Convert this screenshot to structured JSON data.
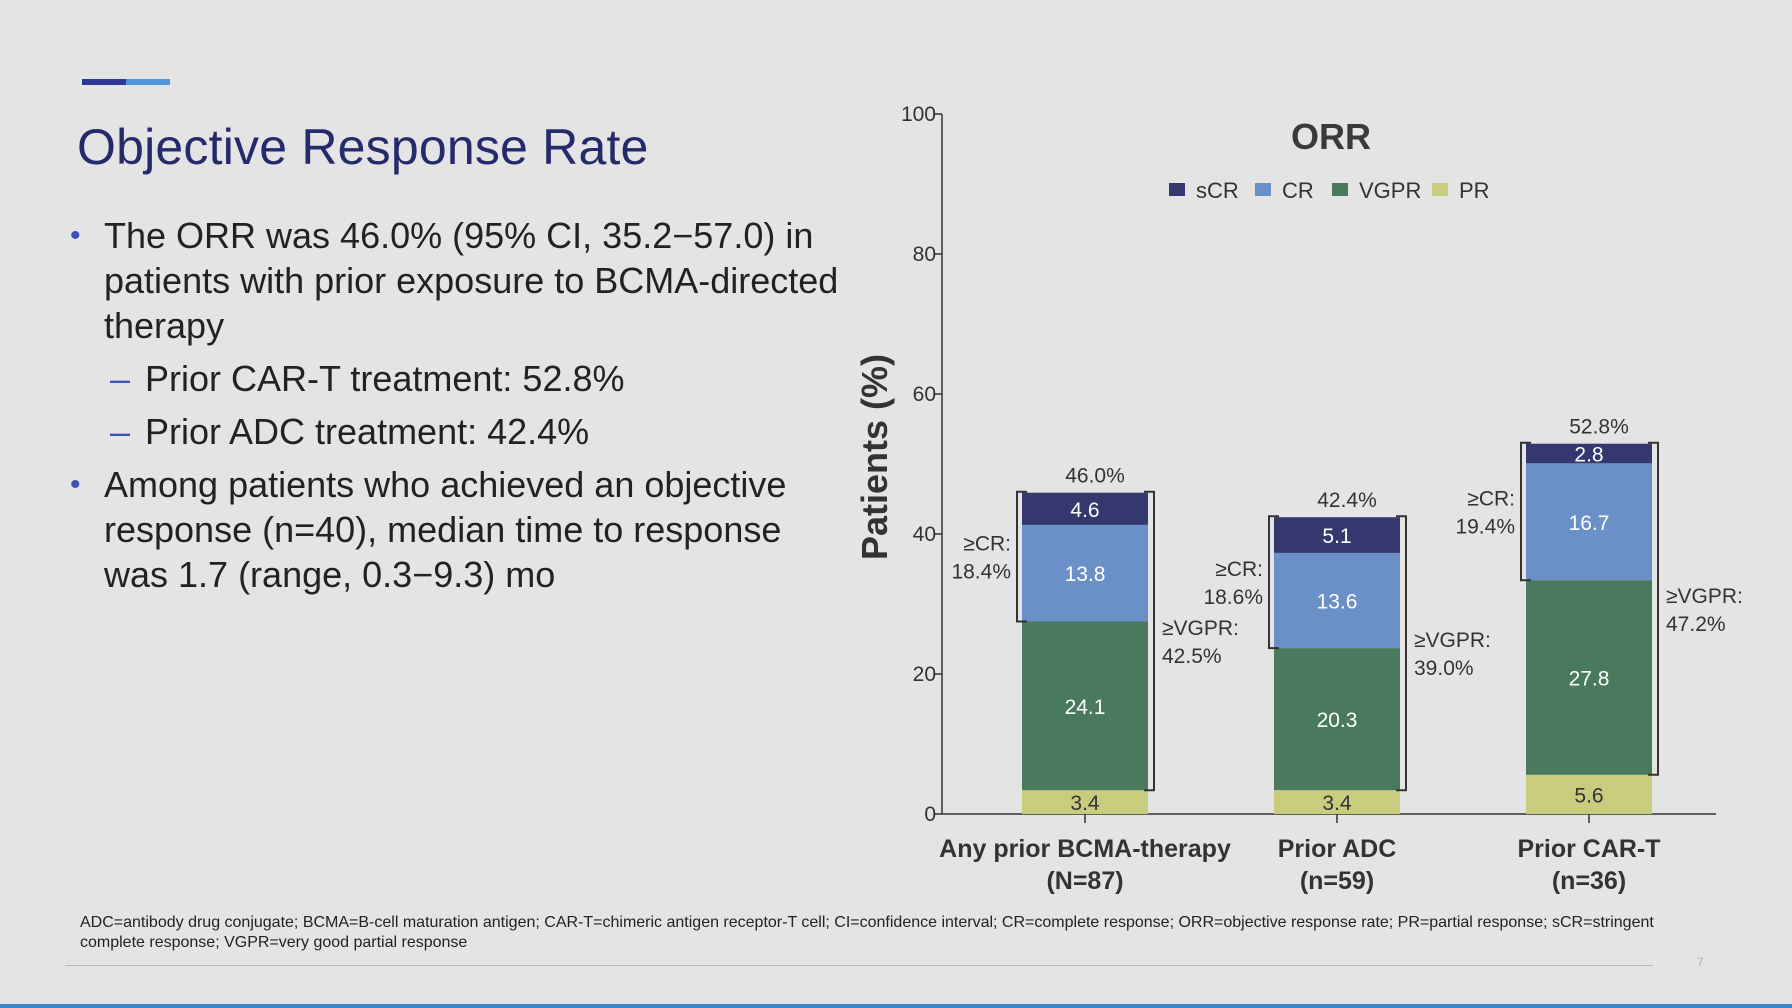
{
  "slide": {
    "title": "Objective Response Rate",
    "bullets": [
      {
        "text": "The ORR was 46.0% (95% CI, 35.2−57.0) in patients with prior exposure to BCMA-directed therapy",
        "sub": [
          "Prior CAR-T treatment: 52.8%",
          "Prior ADC treatment: 42.4%"
        ]
      },
      {
        "text": "Among patients who achieved an objective response (n=40), median time to response was 1.7 (range, 0.3−9.3) mo",
        "sub": []
      }
    ],
    "footnote": "ADC=antibody drug conjugate; BCMA=B-cell maturation antigen; CAR-T=chimeric antigen receptor-T cell; CI=confidence interval; CR=complete response; ORR=objective response rate; PR=partial response; sCR=stringent complete response; VGPR=very good partial response",
    "page_number": "7",
    "colors": {
      "title": "#252a6c",
      "accent_dark": "#2e3696",
      "accent_light": "#4f97dc"
    }
  },
  "chart_data": {
    "type": "bar",
    "stacked": true,
    "title": "ORR",
    "ylabel": "Patients (%)",
    "ylim": [
      0,
      100
    ],
    "yticks": [
      0,
      20,
      40,
      60,
      80,
      100
    ],
    "legend_position": "top",
    "categories": [
      {
        "name": "Any prior BCMA-therapy",
        "n": "(N=87)"
      },
      {
        "name": "Prior ADC",
        "n": "(n=59)"
      },
      {
        "name": "Prior CAR-T",
        "n": "(n=36)"
      }
    ],
    "series": [
      {
        "name": "PR",
        "values": [
          3.4,
          3.4,
          5.6
        ],
        "labels": [
          "3.4",
          "3.4",
          "5.6"
        ],
        "color": "#c9cc7d"
      },
      {
        "name": "VGPR",
        "values": [
          24.1,
          20.3,
          27.8
        ],
        "labels": [
          "24.1",
          "20.3",
          "27.8"
        ],
        "color": "#4a7a5e"
      },
      {
        "name": "CR",
        "values": [
          13.8,
          13.6,
          16.7
        ],
        "labels": [
          "13.8",
          "13.6",
          "16.7"
        ],
        "color": "#6b8fc7"
      },
      {
        "name": "sCR",
        "values": [
          4.6,
          5.1,
          2.8
        ],
        "labels": [
          "4.6",
          "5.1",
          "2.8"
        ],
        "color": "#34386e"
      }
    ],
    "legend_order": [
      "sCR",
      "CR",
      "VGPR",
      "PR"
    ],
    "totals": [
      "46.0%",
      "42.4%",
      "52.8%"
    ],
    "cr_annotations": [
      {
        "label": "≥CR:",
        "value": "18.4%"
      },
      {
        "label": "≥CR:",
        "value": "18.6%"
      },
      {
        "label": "≥CR:",
        "value": "19.4%"
      }
    ],
    "vgpr_annotations": [
      {
        "label": "≥VGPR:",
        "value": "42.5%"
      },
      {
        "label": "≥VGPR:",
        "value": "39.0%"
      },
      {
        "label": "≥VGPR:",
        "value": "47.2%"
      }
    ]
  }
}
